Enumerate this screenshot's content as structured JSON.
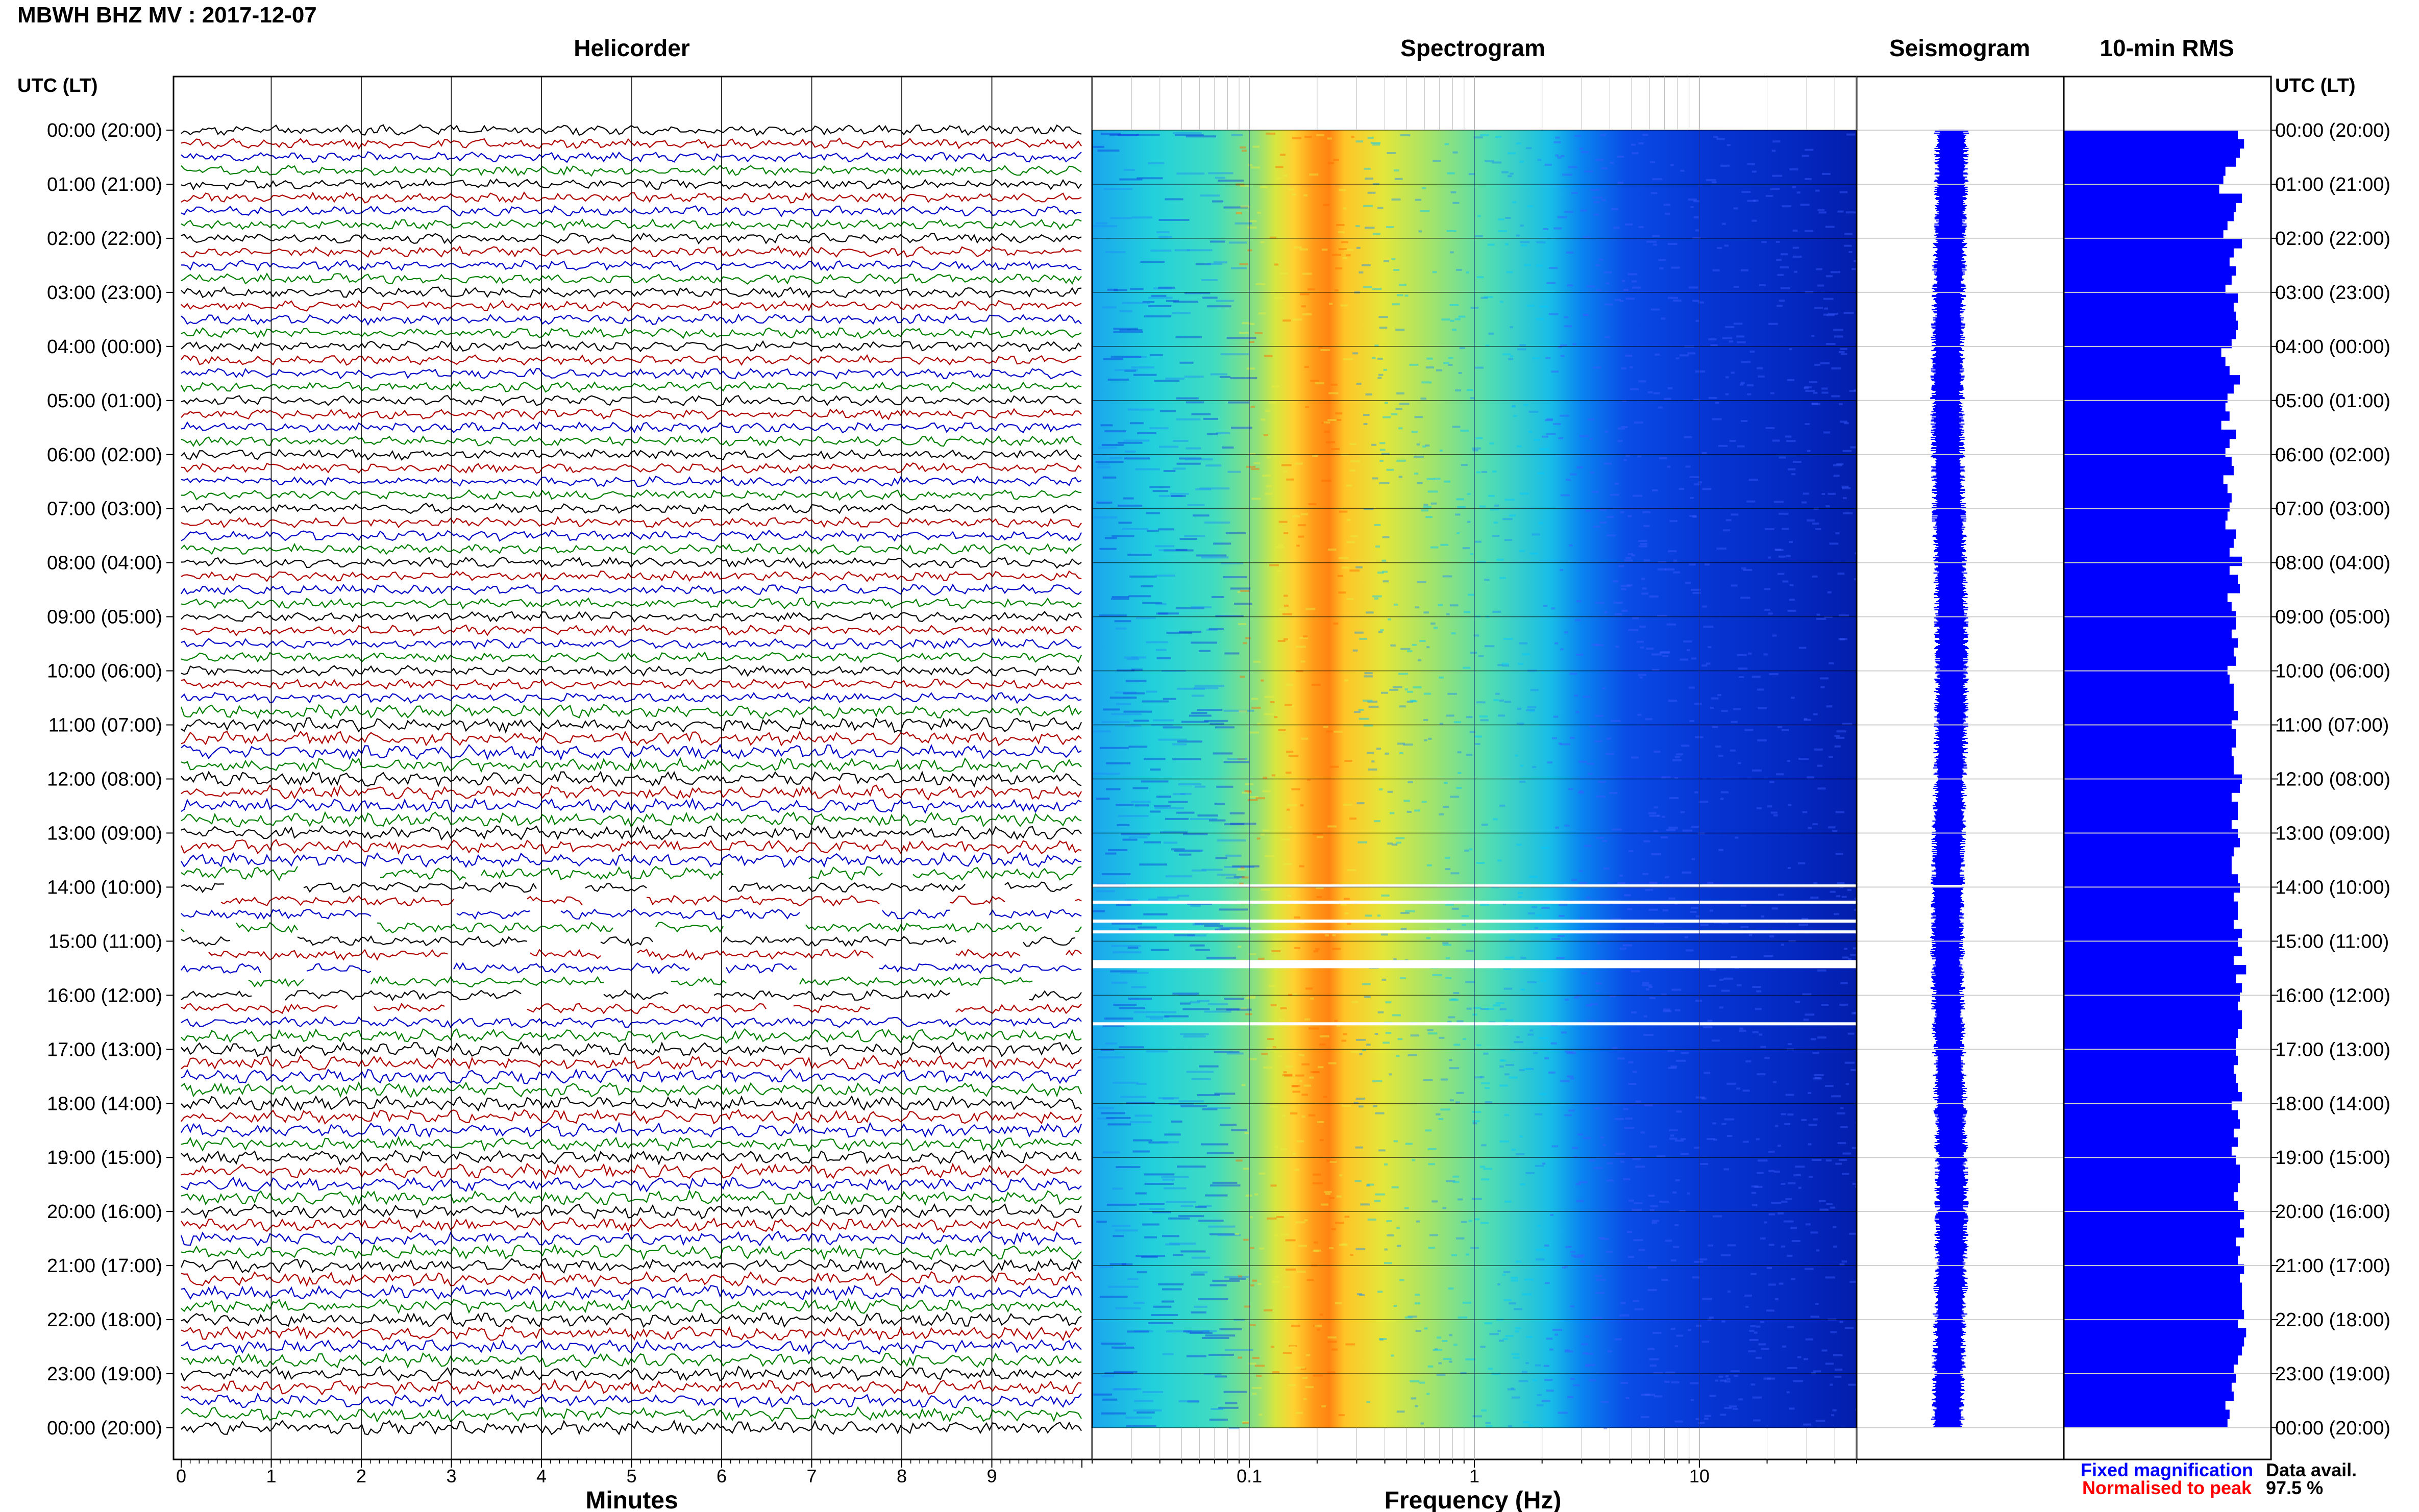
{
  "title": "MBWH BHZ MV : 2017-12-07",
  "panels": {
    "helicorder": "Helicorder",
    "spectrogram": "Spectrogram",
    "seismogram": "Seismogram",
    "rms": "10-min RMS"
  },
  "time_axis": {
    "label": "UTC (LT)",
    "ticks": [
      "00:00 (20:00)",
      "01:00 (21:00)",
      "02:00 (22:00)",
      "03:00 (23:00)",
      "04:00 (00:00)",
      "05:00 (01:00)",
      "06:00 (02:00)",
      "07:00 (03:00)",
      "08:00 (04:00)",
      "09:00 (05:00)",
      "10:00 (06:00)",
      "11:00 (07:00)",
      "12:00 (08:00)",
      "13:00 (09:00)",
      "14:00 (10:00)",
      "15:00 (11:00)",
      "16:00 (12:00)",
      "17:00 (13:00)",
      "18:00 (14:00)",
      "19:00 (15:00)",
      "20:00 (16:00)",
      "21:00 (17:00)",
      "22:00 (18:00)",
      "23:00 (19:00)",
      "00:00 (20:00)"
    ]
  },
  "helicorder_axis": {
    "label": "Minutes",
    "ticks": [
      "0",
      "1",
      "2",
      "3",
      "4",
      "5",
      "6",
      "7",
      "8",
      "9"
    ],
    "trace_colors": [
      "#000000",
      "#b00000",
      "#0000c8",
      "#008000"
    ]
  },
  "spectrogram_axis": {
    "label": "Frequency (Hz)",
    "ticks": [
      "0.1",
      "1",
      "10"
    ]
  },
  "legend": {
    "fixed": "Fixed magnification",
    "normalised": "Normalised to peak",
    "fixed_color": "#0000ff",
    "normalised_color": "#ff0000"
  },
  "data_availability": {
    "label": "Data avail.",
    "value": "97.5 %"
  },
  "chart_data": {
    "type": "heatmap",
    "colors": {
      "spectrogram_scale": [
        "#00008b",
        "#0022ee",
        "#0a8cff",
        "#22d6e8",
        "#7fe08a",
        "#e6e83a",
        "#ffb020",
        "#ff7a10"
      ],
      "seismogram": "#0000ff",
      "rms": "#0000ff"
    },
    "spectrogram": {
      "frequency_range_hz": [
        0.02,
        50
      ],
      "x_scale": "log",
      "dominant_band_hz": [
        0.2,
        0.35
      ],
      "gaps_utc_hours": [
        [
          13.95,
          14.0
        ],
        [
          14.25,
          14.3
        ],
        [
          14.6,
          14.65
        ],
        [
          14.8,
          14.85
        ],
        [
          15.35,
          15.5
        ],
        [
          16.5,
          16.55
        ]
      ]
    },
    "seismogram": {
      "gaps_utc_hours": [
        [
          13.95,
          14.0
        ]
      ]
    },
    "rms": {
      "interval_minutes": 10,
      "relative_values": [
        0.84,
        0.87,
        0.85,
        0.83,
        0.78,
        0.77,
        0.75,
        0.86,
        0.83,
        0.82,
        0.79,
        0.77,
        0.86,
        0.82,
        0.8,
        0.83,
        0.81,
        0.78,
        0.84,
        0.82,
        0.83,
        0.84,
        0.83,
        0.81,
        0.76,
        0.78,
        0.8,
        0.85,
        0.82,
        0.79,
        0.78,
        0.8,
        0.76,
        0.83,
        0.8,
        0.78,
        0.81,
        0.82,
        0.77,
        0.79,
        0.81,
        0.8,
        0.79,
        0.78,
        0.83,
        0.82,
        0.8,
        0.86,
        0.8,
        0.84,
        0.85,
        0.79,
        0.81,
        0.83,
        0.83,
        0.81,
        0.84,
        0.82,
        0.83,
        0.79,
        0.8,
        0.82,
        0.82,
        0.82,
        0.84,
        0.81,
        0.83,
        0.83,
        0.81,
        0.82,
        0.82,
        0.86,
        0.85,
        0.81,
        0.84,
        0.84,
        0.81,
        0.84,
        0.85,
        0.82,
        0.81,
        0.81,
        0.84,
        0.85,
        0.82,
        0.84,
        0.84,
        0.82,
        0.86,
        0.84,
        0.86,
        0.82,
        0.88,
        0.83,
        0.86,
        0.85,
        0.84,
        0.86,
        0.86,
        0.84,
        0.83,
        0.83,
        0.84,
        0.82,
        0.83,
        0.84,
        0.86,
        0.81,
        0.84,
        0.85,
        0.82,
        0.84,
        0.81,
        0.83,
        0.85,
        0.85,
        0.84,
        0.82,
        0.84,
        0.87,
        0.85,
        0.87,
        0.83,
        0.85,
        0.84,
        0.87,
        0.85,
        0.86,
        0.86,
        0.86,
        0.87,
        0.84,
        0.88,
        0.87,
        0.86,
        0.84,
        0.82,
        0.83,
        0.81,
        0.82,
        0.78,
        0.8,
        0.79
      ]
    }
  }
}
